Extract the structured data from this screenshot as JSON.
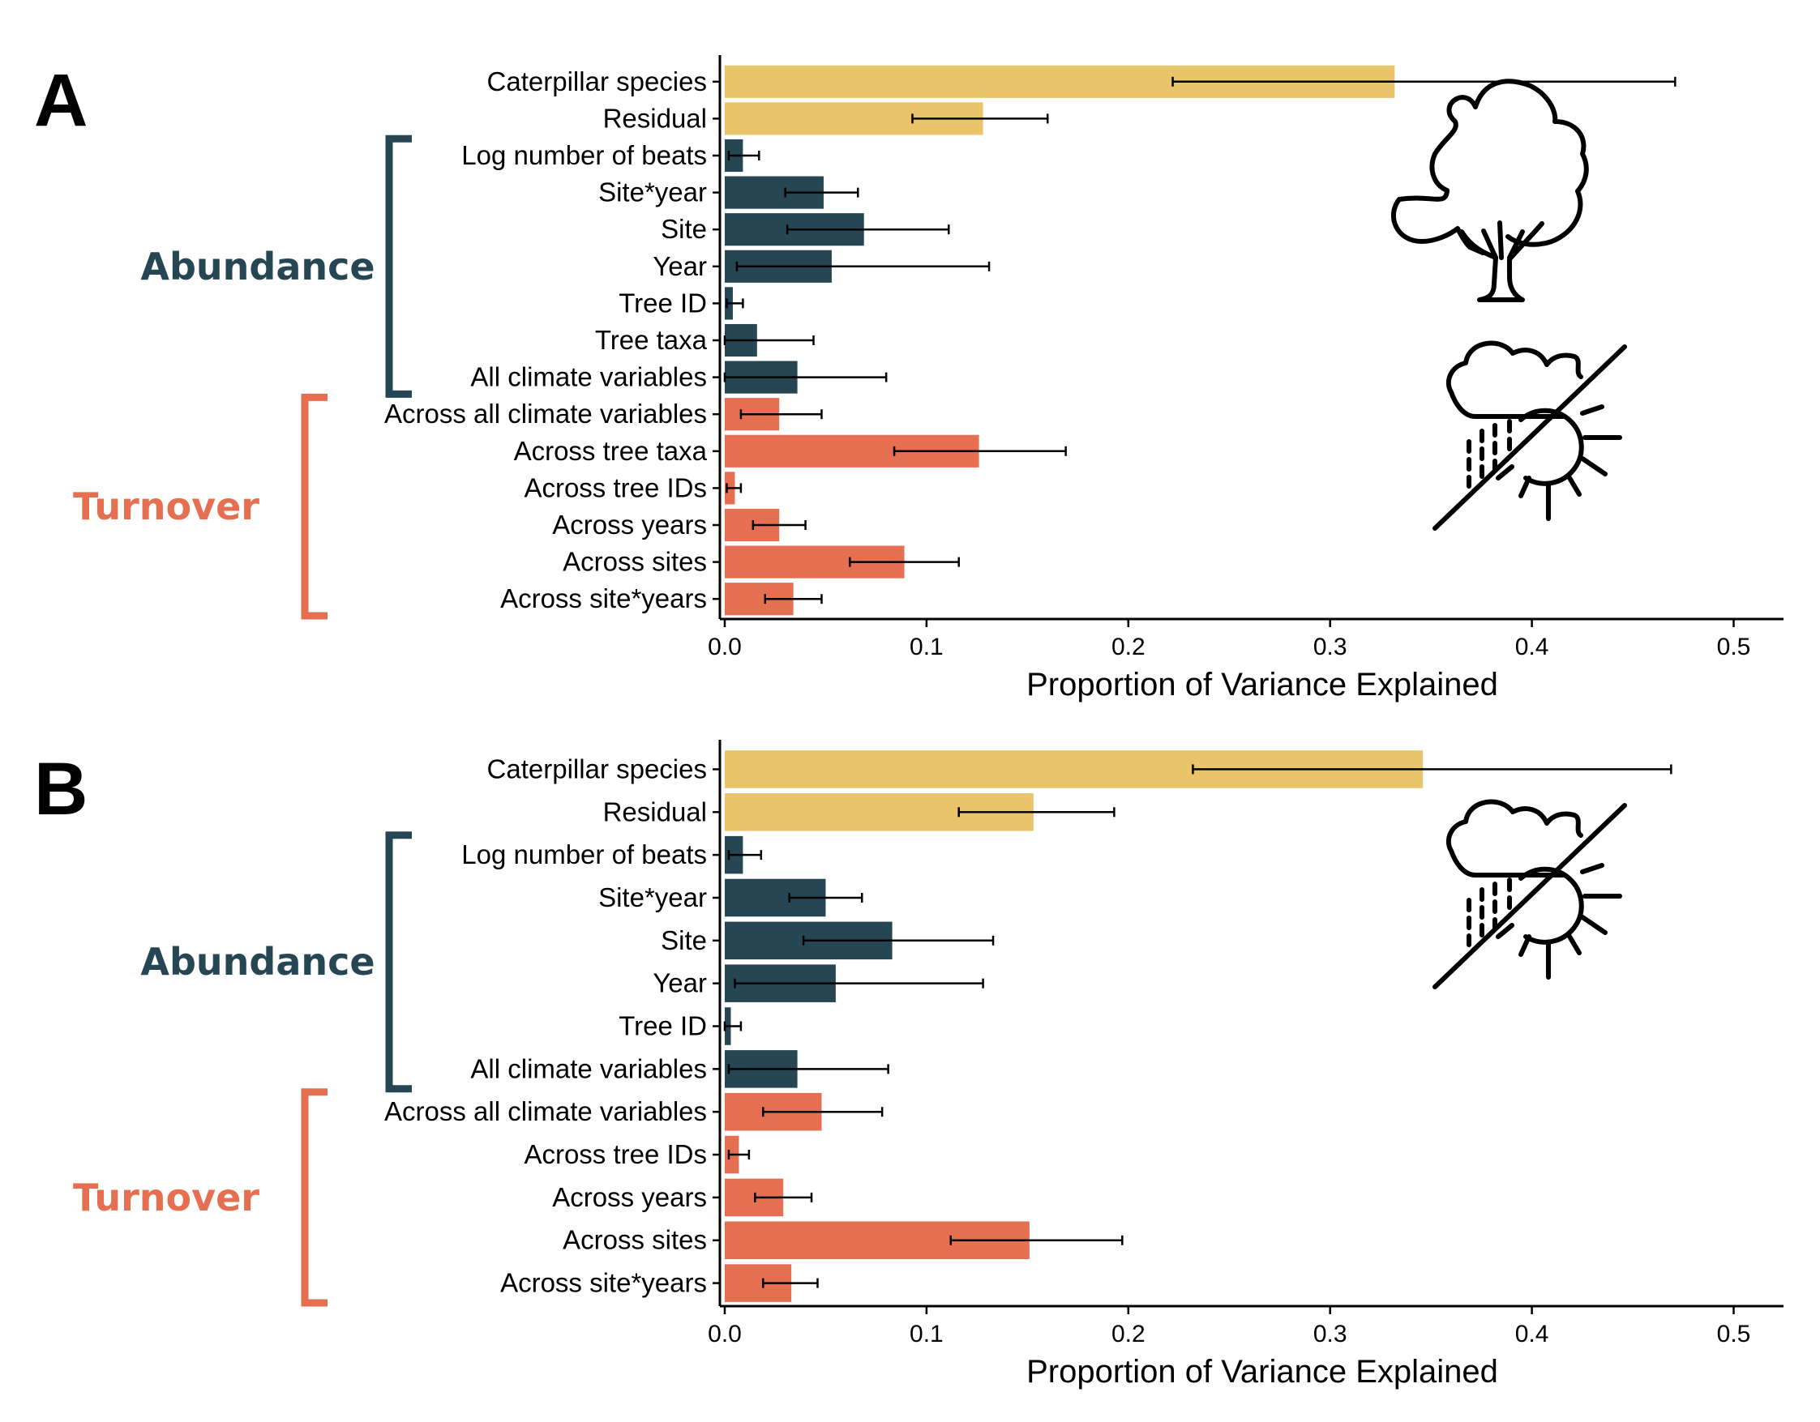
{
  "colors": {
    "species": "#E9C46A",
    "abundance": "#264653",
    "turnover": "#E76F51"
  },
  "chart_data": [
    {
      "panel": "A",
      "type": "bar",
      "orientation": "horizontal",
      "xlabel": "Proportion of Variance Explained",
      "xlim": [
        0,
        0.52
      ],
      "xticks": [
        "0.0",
        "0.1",
        "0.2",
        "0.3",
        "0.4",
        "0.5"
      ],
      "groups": [
        {
          "label": "Abundance",
          "color_key": "abundance"
        },
        {
          "label": "Turnover",
          "color_key": "turnover"
        }
      ],
      "bars": [
        {
          "label": "Caterpillar species",
          "group": "species",
          "value": 0.332,
          "err_low": 0.222,
          "err_high": 0.471
        },
        {
          "label": "Residual",
          "group": "species",
          "value": 0.128,
          "err_low": 0.093,
          "err_high": 0.16
        },
        {
          "label": "Log number of beats",
          "group": "abundance",
          "value": 0.009,
          "err_low": 0.002,
          "err_high": 0.017
        },
        {
          "label": "Site*year",
          "group": "abundance",
          "value": 0.049,
          "err_low": 0.03,
          "err_high": 0.066
        },
        {
          "label": "Site",
          "group": "abundance",
          "value": 0.069,
          "err_low": 0.031,
          "err_high": 0.111
        },
        {
          "label": "Year",
          "group": "abundance",
          "value": 0.053,
          "err_low": 0.006,
          "err_high": 0.131
        },
        {
          "label": "Tree ID",
          "group": "abundance",
          "value": 0.004,
          "err_low": 0.001,
          "err_high": 0.009
        },
        {
          "label": "Tree taxa",
          "group": "abundance",
          "value": 0.016,
          "err_low": 0.0,
          "err_high": 0.044
        },
        {
          "label": "All climate variables",
          "group": "abundance",
          "value": 0.036,
          "err_low": 0.0,
          "err_high": 0.08
        },
        {
          "label": "Across all climate variables",
          "group": "turnover",
          "value": 0.027,
          "err_low": 0.008,
          "err_high": 0.048
        },
        {
          "label": "Across tree taxa",
          "group": "turnover",
          "value": 0.126,
          "err_low": 0.084,
          "err_high": 0.169
        },
        {
          "label": "Across tree IDs",
          "group": "turnover",
          "value": 0.005,
          "err_low": 0.001,
          "err_high": 0.008
        },
        {
          "label": "Across years",
          "group": "turnover",
          "value": 0.027,
          "err_low": 0.014,
          "err_high": 0.04
        },
        {
          "label": "Across sites",
          "group": "turnover",
          "value": 0.089,
          "err_low": 0.062,
          "err_high": 0.116
        },
        {
          "label": "Across site*years",
          "group": "turnover",
          "value": 0.034,
          "err_low": 0.02,
          "err_high": 0.048
        }
      ]
    },
    {
      "panel": "B",
      "type": "bar",
      "orientation": "horizontal",
      "xlabel": "Proportion of Variance Explained",
      "xlim": [
        0,
        0.52
      ],
      "xticks": [
        "0.0",
        "0.1",
        "0.2",
        "0.3",
        "0.4",
        "0.5"
      ],
      "groups": [
        {
          "label": "Abundance",
          "color_key": "abundance"
        },
        {
          "label": "Turnover",
          "color_key": "turnover"
        }
      ],
      "bars": [
        {
          "label": "Caterpillar species",
          "group": "species",
          "value": 0.346,
          "err_low": 0.232,
          "err_high": 0.469
        },
        {
          "label": "Residual",
          "group": "species",
          "value": 0.153,
          "err_low": 0.116,
          "err_high": 0.193
        },
        {
          "label": "Log number of beats",
          "group": "abundance",
          "value": 0.009,
          "err_low": 0.002,
          "err_high": 0.018
        },
        {
          "label": "Site*year",
          "group": "abundance",
          "value": 0.05,
          "err_low": 0.032,
          "err_high": 0.068
        },
        {
          "label": "Site",
          "group": "abundance",
          "value": 0.083,
          "err_low": 0.039,
          "err_high": 0.133
        },
        {
          "label": "Year",
          "group": "abundance",
          "value": 0.055,
          "err_low": 0.005,
          "err_high": 0.128
        },
        {
          "label": "Tree ID",
          "group": "abundance",
          "value": 0.003,
          "err_low": 0.0,
          "err_high": 0.008
        },
        {
          "label": "All climate variables",
          "group": "abundance",
          "value": 0.036,
          "err_low": 0.002,
          "err_high": 0.081
        },
        {
          "label": "Across all climate variables",
          "group": "turnover",
          "value": 0.048,
          "err_low": 0.019,
          "err_high": 0.078
        },
        {
          "label": "Across tree IDs",
          "group": "turnover",
          "value": 0.007,
          "err_low": 0.002,
          "err_high": 0.012
        },
        {
          "label": "Across years",
          "group": "turnover",
          "value": 0.029,
          "err_low": 0.015,
          "err_high": 0.043
        },
        {
          "label": "Across sites",
          "group": "turnover",
          "value": 0.151,
          "err_low": 0.112,
          "err_high": 0.197
        },
        {
          "label": "Across site*years",
          "group": "turnover",
          "value": 0.033,
          "err_low": 0.019,
          "err_high": 0.046
        }
      ]
    }
  ],
  "icons": [
    "tree-icon",
    "rain-sun-icon"
  ]
}
